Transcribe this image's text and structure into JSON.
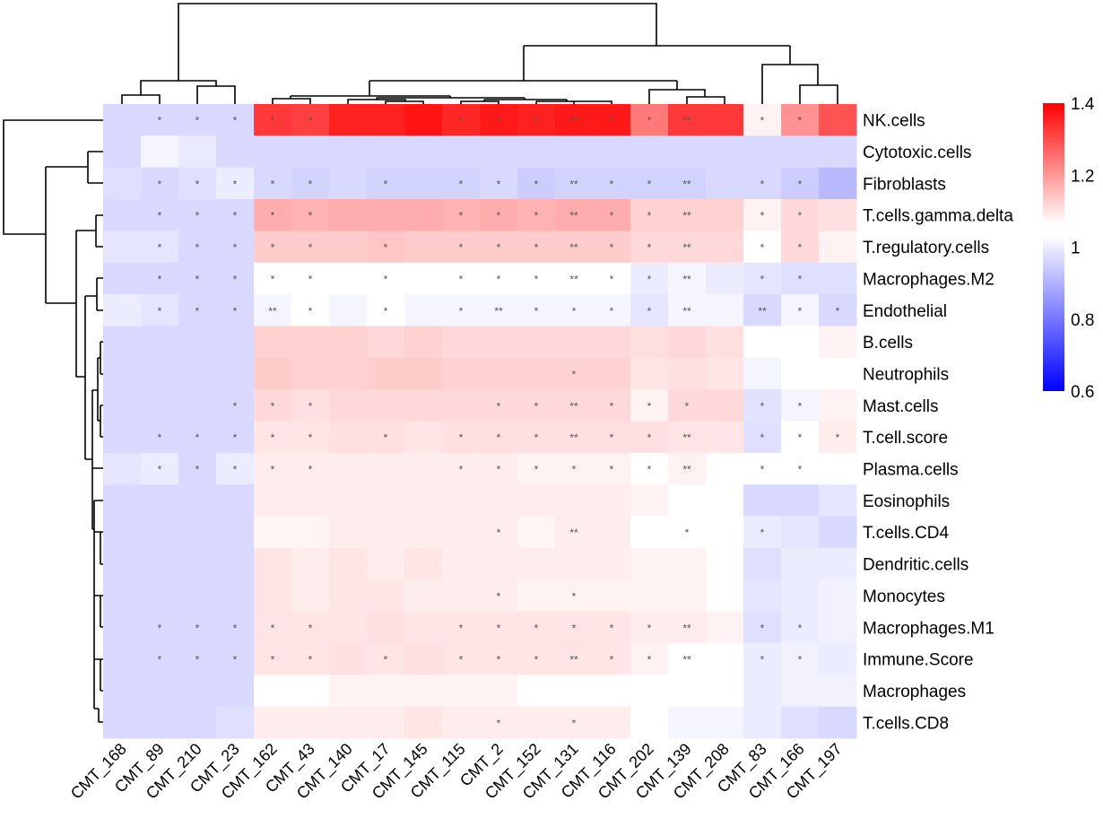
{
  "chart_data": {
    "type": "heatmap",
    "title": "",
    "columns": [
      "CMT_168",
      "CMT_89",
      "CMT_210",
      "CMT_23",
      "CMT_162",
      "CMT_43",
      "CMT_140",
      "CMT_17",
      "CMT_145",
      "CMT_115",
      "CMT_2",
      "CMT_152",
      "CMT_131",
      "CMT_116",
      "CMT_202",
      "CMT_139",
      "CMT_208",
      "CMT_83",
      "CMT_166",
      "CMT_197"
    ],
    "rows": [
      "NK.cells",
      "Cytotoxic.cells",
      "Fibroblasts",
      "T.cells.gamma.delta",
      "T.regulatory.cells",
      "Macrophages.M2",
      "Endothelial",
      "B.cells",
      "Neutrophils",
      "Mast.cells",
      "T.cell.score",
      "Plasma.cells",
      "Eosinophils",
      "T.cells.CD4",
      "Dendritic.cells",
      "Monocytes",
      "Macrophages.M1",
      "Immune.Score",
      "Macrophages",
      "T.cells.CD8"
    ],
    "values": [
      [
        0.94,
        0.94,
        0.94,
        0.94,
        1.31,
        1.3,
        1.35,
        1.35,
        1.37,
        1.34,
        1.36,
        1.35,
        1.36,
        1.36,
        1.21,
        1.31,
        1.31,
        1.02,
        1.17,
        1.27
      ],
      [
        0.94,
        0.985,
        0.965,
        0.94,
        0.94,
        0.94,
        0.94,
        0.94,
        0.94,
        0.94,
        0.94,
        0.94,
        0.94,
        0.94,
        0.94,
        0.94,
        0.94,
        0.94,
        0.94,
        0.94
      ],
      [
        0.95,
        0.94,
        0.95,
        0.97,
        0.94,
        0.93,
        0.94,
        0.93,
        0.93,
        0.93,
        0.94,
        0.92,
        0.93,
        0.93,
        0.93,
        0.93,
        0.94,
        0.94,
        0.92,
        0.89
      ],
      [
        0.94,
        0.94,
        0.94,
        0.94,
        1.13,
        1.12,
        1.13,
        1.13,
        1.13,
        1.12,
        1.13,
        1.12,
        1.13,
        1.13,
        1.07,
        1.07,
        1.07,
        1.02,
        1.06,
        1.05
      ],
      [
        0.96,
        0.96,
        0.94,
        0.94,
        1.08,
        1.08,
        1.08,
        1.09,
        1.08,
        1.08,
        1.08,
        1.08,
        1.08,
        1.08,
        1.06,
        1.06,
        1.06,
        1.0,
        1.06,
        1.02
      ],
      [
        0.94,
        0.94,
        0.94,
        0.94,
        1.0,
        1.0,
        1.0,
        1.0,
        1.0,
        1.0,
        1.0,
        1.0,
        1.0,
        1.0,
        0.97,
        0.985,
        0.97,
        0.96,
        0.95,
        0.95
      ],
      [
        0.97,
        0.96,
        0.94,
        0.94,
        0.985,
        1.0,
        0.985,
        1.0,
        0.985,
        0.985,
        0.985,
        0.985,
        0.985,
        0.985,
        0.96,
        0.985,
        0.985,
        0.94,
        0.985,
        0.94
      ],
      [
        0.94,
        0.94,
        0.94,
        0.94,
        1.07,
        1.07,
        1.07,
        1.06,
        1.07,
        1.06,
        1.06,
        1.06,
        1.06,
        1.06,
        1.05,
        1.06,
        1.05,
        1.0,
        1.0,
        1.02
      ],
      [
        0.94,
        0.94,
        0.94,
        0.94,
        1.08,
        1.07,
        1.07,
        1.08,
        1.08,
        1.07,
        1.07,
        1.07,
        1.07,
        1.07,
        1.04,
        1.05,
        1.04,
        0.985,
        1.0,
        1.0
      ],
      [
        0.94,
        0.94,
        0.94,
        0.94,
        1.06,
        1.05,
        1.06,
        1.06,
        1.06,
        1.06,
        1.06,
        1.06,
        1.06,
        1.06,
        1.02,
        1.06,
        1.06,
        0.955,
        0.985,
        1.02
      ],
      [
        0.94,
        0.94,
        0.94,
        0.94,
        1.04,
        1.04,
        1.05,
        1.05,
        1.04,
        1.05,
        1.05,
        1.05,
        1.05,
        1.05,
        1.05,
        1.04,
        1.04,
        0.95,
        1.0,
        1.03
      ],
      [
        0.96,
        0.97,
        0.94,
        0.97,
        1.03,
        1.03,
        1.03,
        1.03,
        1.03,
        1.03,
        1.03,
        1.02,
        1.02,
        1.02,
        1.0,
        1.02,
        1.0,
        1.0,
        1.0,
        1.0
      ],
      [
        0.94,
        0.94,
        0.94,
        0.94,
        1.03,
        1.03,
        1.03,
        1.03,
        1.03,
        1.03,
        1.03,
        1.03,
        1.03,
        1.03,
        1.02,
        1.0,
        1.0,
        0.94,
        0.94,
        0.96
      ],
      [
        0.94,
        0.94,
        0.94,
        0.94,
        1.015,
        1.015,
        1.03,
        1.03,
        1.03,
        1.03,
        1.03,
        1.015,
        1.03,
        1.03,
        1.0,
        1.0,
        1.0,
        0.97,
        0.96,
        0.94
      ],
      [
        0.94,
        0.94,
        0.94,
        0.94,
        1.04,
        1.03,
        1.04,
        1.03,
        1.04,
        1.03,
        1.03,
        1.03,
        1.03,
        1.03,
        1.02,
        1.02,
        1.0,
        0.95,
        0.97,
        0.97
      ],
      [
        0.94,
        0.94,
        0.94,
        0.94,
        1.04,
        1.03,
        1.04,
        1.04,
        1.03,
        1.03,
        1.03,
        1.02,
        1.02,
        1.02,
        1.02,
        1.02,
        1.0,
        0.96,
        0.97,
        0.98
      ],
      [
        0.94,
        0.94,
        0.94,
        0.94,
        1.04,
        1.04,
        1.04,
        1.05,
        1.04,
        1.04,
        1.04,
        1.04,
        1.04,
        1.04,
        1.03,
        1.03,
        1.02,
        0.95,
        0.97,
        0.98
      ],
      [
        0.94,
        0.94,
        0.94,
        0.94,
        1.04,
        1.04,
        1.05,
        1.04,
        1.05,
        1.04,
        1.04,
        1.04,
        1.04,
        1.04,
        1.02,
        1.0,
        1.0,
        0.97,
        0.98,
        0.97
      ],
      [
        0.94,
        0.94,
        0.94,
        0.94,
        1.0,
        1.0,
        1.02,
        1.02,
        1.02,
        1.02,
        1.02,
        1.0,
        1.0,
        1.0,
        1.0,
        1.0,
        1.0,
        0.97,
        0.98,
        0.98
      ],
      [
        0.94,
        0.94,
        0.94,
        0.95,
        1.03,
        1.03,
        1.03,
        1.03,
        1.04,
        1.03,
        1.03,
        1.03,
        1.03,
        1.03,
        1.0,
        0.985,
        0.985,
        0.97,
        0.95,
        0.94
      ]
    ],
    "significance": [
      [
        "",
        "*",
        "*",
        "*",
        "*",
        "*",
        "",
        "",
        "",
        "*",
        "*",
        "*",
        "**",
        "*",
        "*",
        "**",
        "",
        "*",
        "*",
        ""
      ],
      [
        "",
        "",
        "",
        "",
        "",
        "",
        "",
        "",
        "",
        "",
        "",
        "",
        "",
        "",
        "",
        "",
        "",
        "",
        "",
        ""
      ],
      [
        "",
        "*",
        "*",
        "*",
        "*",
        "*",
        "",
        "*",
        "",
        "*",
        "*",
        "*",
        "**",
        "*",
        "*",
        "**",
        "",
        "*",
        "*",
        ""
      ],
      [
        "",
        "*",
        "*",
        "*",
        "*",
        "*",
        "",
        "",
        "",
        "*",
        "*",
        "*",
        "**",
        "*",
        "*",
        "**",
        "",
        "*",
        "*",
        ""
      ],
      [
        "",
        "*",
        "*",
        "*",
        "*",
        "*",
        "",
        "*",
        "",
        "*",
        "*",
        "*",
        "**",
        "*",
        "*",
        "**",
        "",
        "*",
        "*",
        ""
      ],
      [
        "",
        "*",
        "*",
        "*",
        "*",
        "*",
        "",
        "*",
        "",
        "*",
        "*",
        "*",
        "**",
        "*",
        "*",
        "**",
        "",
        "*",
        "*",
        ""
      ],
      [
        "",
        "*",
        "*",
        "*",
        "**",
        "*",
        "",
        "*",
        "",
        "*",
        "**",
        "*",
        "*",
        "*",
        "*",
        "**",
        "",
        "**",
        "*",
        "*"
      ],
      [
        "",
        "",
        "",
        "",
        "",
        "",
        "",
        "",
        "",
        "",
        "",
        "",
        "",
        "",
        "",
        "",
        "",
        "",
        "",
        ""
      ],
      [
        "",
        "",
        "",
        "",
        "",
        "",
        "",
        "",
        "",
        "",
        "",
        "",
        "*",
        "",
        "",
        "",
        "",
        "",
        "",
        ""
      ],
      [
        "",
        "",
        "",
        "*",
        "*",
        "*",
        "",
        "",
        "",
        "",
        "*",
        "*",
        "**",
        "*",
        "*",
        "*",
        "",
        "*",
        "*",
        ""
      ],
      [
        "",
        "*",
        "*",
        "*",
        "*",
        "*",
        "",
        "*",
        "",
        "*",
        "*",
        "*",
        "**",
        "*",
        "*",
        "**",
        "",
        "*",
        "*",
        "*"
      ],
      [
        "",
        "*",
        "*",
        "*",
        "*",
        "*",
        "",
        "",
        "",
        "*",
        "*",
        "*",
        "*",
        "*",
        "*",
        "**",
        "",
        "*",
        "*",
        ""
      ],
      [
        "",
        "",
        "",
        "",
        "",
        "",
        "",
        "",
        "",
        "",
        "",
        "",
        "",
        "",
        "",
        "",
        "",
        "",
        "",
        ""
      ],
      [
        "",
        "",
        "",
        "",
        "",
        "",
        "",
        "",
        "",
        "",
        "*",
        "",
        "**",
        "",
        "",
        "*",
        "",
        "*",
        "",
        ""
      ],
      [
        "",
        "",
        "",
        "",
        "",
        "",
        "",
        "",
        "",
        "",
        "",
        "",
        "",
        "",
        "",
        "",
        "",
        "",
        "",
        ""
      ],
      [
        "",
        "",
        "",
        "",
        "",
        "",
        "",
        "",
        "",
        "",
        "*",
        "",
        "*",
        "",
        "",
        "",
        "",
        "",
        "",
        ""
      ],
      [
        "",
        "*",
        "*",
        "*",
        "*",
        "*",
        "",
        "",
        "",
        "*",
        "*",
        "*",
        "*",
        "*",
        "*",
        "**",
        "",
        "*",
        "*",
        ""
      ],
      [
        "",
        "*",
        "*",
        "*",
        "*",
        "*",
        "",
        "*",
        "",
        "*",
        "*",
        "*",
        "**",
        "*",
        "*",
        "**",
        "",
        "*",
        "*",
        ""
      ],
      [
        "",
        "",
        "",
        "",
        "",
        "",
        "",
        "",
        "",
        "",
        "",
        "",
        "",
        "",
        "",
        "",
        "",
        "",
        "",
        ""
      ],
      [
        "",
        "",
        "",
        "",
        "",
        "",
        "",
        "",
        "",
        "",
        "*",
        "",
        "*",
        "",
        "",
        "",
        "",
        "",
        "",
        ""
      ]
    ],
    "color_scale": {
      "low": "#0000FF",
      "mid": "#FFFFFF",
      "high": "#FF0000",
      "min": 0.6,
      "mid_value": 1.0,
      "max": 1.4
    },
    "legend": {
      "position": "right",
      "ticks": [
        "1.4",
        "1.2",
        "1",
        "0.8",
        "0.6"
      ],
      "tick_values": [
        1.4,
        1.2,
        1.0,
        0.8,
        0.6
      ]
    },
    "row_dendrogram": true,
    "column_dendrogram": true,
    "grid": false
  }
}
